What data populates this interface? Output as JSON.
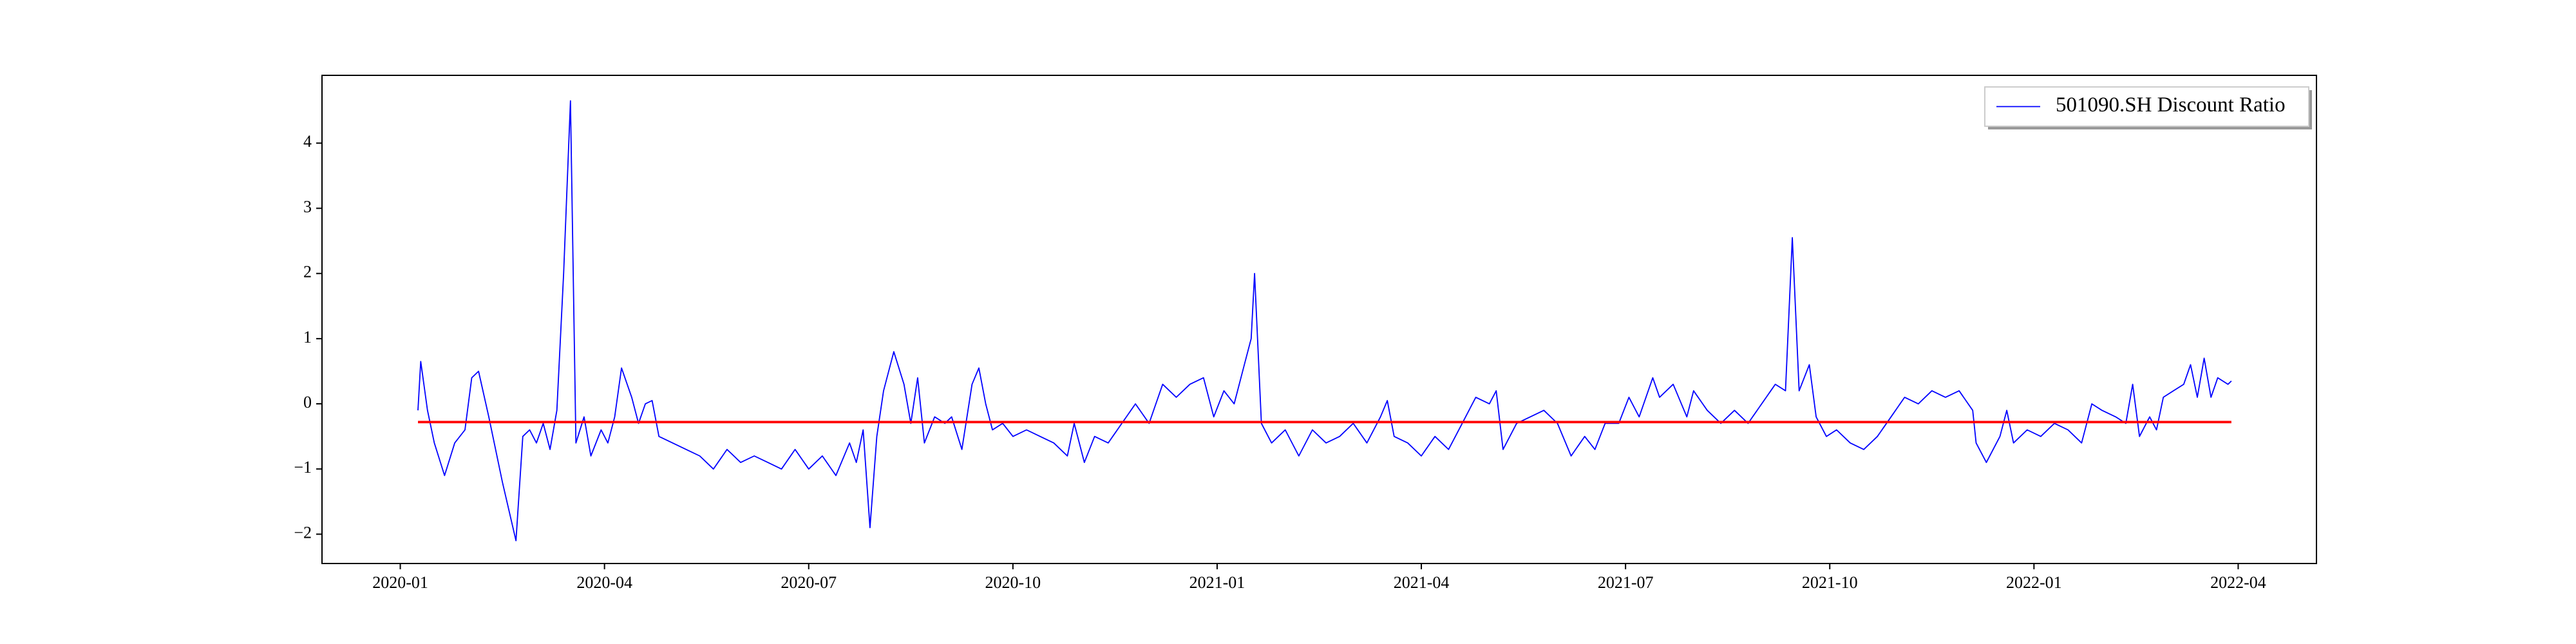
{
  "chart_data": {
    "type": "line",
    "x": [
      0.26,
      0.3,
      0.4,
      0.5,
      0.65,
      0.8,
      0.95,
      1.05,
      1.15,
      1.3,
      1.5,
      1.7,
      1.8,
      1.9,
      2.0,
      2.1,
      2.2,
      2.3,
      2.4,
      2.5,
      2.58,
      2.7,
      2.8,
      2.95,
      3.05,
      3.15,
      3.25,
      3.4,
      3.5,
      3.6,
      3.7,
      3.8,
      4.0,
      4.2,
      4.4,
      4.6,
      4.8,
      5.0,
      5.2,
      5.4,
      5.6,
      5.8,
      6.0,
      6.2,
      6.4,
      6.6,
      6.7,
      6.8,
      6.9,
      7.0,
      7.1,
      7.25,
      7.4,
      7.5,
      7.6,
      7.7,
      7.85,
      8.0,
      8.1,
      8.25,
      8.4,
      8.5,
      8.6,
      8.7,
      8.85,
      9.0,
      9.2,
      9.4,
      9.6,
      9.8,
      9.9,
      10.05,
      10.2,
      10.4,
      10.6,
      10.8,
      11.0,
      11.2,
      11.4,
      11.6,
      11.8,
      11.95,
      12.1,
      12.25,
      12.4,
      12.5,
      12.55,
      12.65,
      12.8,
      13.0,
      13.2,
      13.4,
      13.6,
      13.8,
      14.0,
      14.2,
      14.4,
      14.5,
      14.6,
      14.8,
      15.0,
      15.2,
      15.4,
      15.6,
      15.8,
      16.0,
      16.1,
      16.2,
      16.4,
      16.6,
      16.8,
      17.0,
      17.2,
      17.4,
      17.55,
      17.7,
      17.9,
      18.05,
      18.2,
      18.4,
      18.5,
      18.7,
      18.9,
      19.0,
      19.2,
      19.4,
      19.6,
      19.8,
      20.0,
      20.2,
      20.35,
      20.45,
      20.55,
      20.7,
      20.8,
      20.95,
      21.1,
      21.3,
      21.5,
      21.7,
      21.9,
      22.1,
      22.3,
      22.5,
      22.7,
      22.9,
      23.1,
      23.15,
      23.3,
      23.5,
      23.6,
      23.7,
      23.9,
      24.1,
      24.3,
      24.5,
      24.7,
      24.85,
      25.0,
      25.2,
      25.35,
      25.45,
      25.55,
      25.7,
      25.8,
      25.9,
      26.05,
      26.2,
      26.3,
      26.4,
      26.5,
      26.6,
      26.7,
      26.85,
      26.9
    ],
    "series": [
      {
        "name": "501090.SH Discount Ratio",
        "color": "#0000ff",
        "values": [
          -0.1,
          0.65,
          -0.1,
          -0.6,
          -1.1,
          -0.6,
          -0.4,
          0.4,
          0.5,
          -0.2,
          -1.2,
          -2.1,
          -0.5,
          -0.4,
          -0.6,
          -0.3,
          -0.7,
          -0.1,
          2.0,
          4.65,
          -0.6,
          -0.2,
          -0.8,
          -0.4,
          -0.6,
          -0.2,
          0.55,
          0.1,
          -0.3,
          0.0,
          0.05,
          -0.5,
          -0.6,
          -0.7,
          -0.8,
          -1.0,
          -0.7,
          -0.9,
          -0.8,
          -0.9,
          -1.0,
          -0.7,
          -1.0,
          -0.8,
          -1.1,
          -0.6,
          -0.9,
          -0.4,
          -1.9,
          -0.5,
          0.2,
          0.8,
          0.3,
          -0.3,
          0.4,
          -0.6,
          -0.2,
          -0.3,
          -0.2,
          -0.7,
          0.3,
          0.55,
          0.0,
          -0.4,
          -0.3,
          -0.5,
          -0.4,
          -0.5,
          -0.6,
          -0.8,
          -0.3,
          -0.9,
          -0.5,
          -0.6,
          -0.3,
          0.0,
          -0.3,
          0.3,
          0.1,
          0.3,
          0.4,
          -0.2,
          0.2,
          0.0,
          0.6,
          1.0,
          2.0,
          -0.3,
          -0.6,
          -0.4,
          -0.8,
          -0.4,
          -0.6,
          -0.5,
          -0.3,
          -0.6,
          -0.2,
          0.05,
          -0.5,
          -0.6,
          -0.8,
          -0.5,
          -0.7,
          -0.3,
          0.1,
          0.0,
          0.2,
          -0.7,
          -0.3,
          -0.2,
          -0.1,
          -0.3,
          -0.8,
          -0.5,
          -0.7,
          -0.3,
          -0.3,
          0.1,
          -0.2,
          0.4,
          0.1,
          0.3,
          -0.2,
          0.2,
          -0.1,
          -0.3,
          -0.1,
          -0.3,
          0.0,
          0.3,
          0.2,
          2.55,
          0.2,
          0.6,
          -0.2,
          -0.5,
          -0.4,
          -0.6,
          -0.7,
          -0.5,
          -0.2,
          0.1,
          0.0,
          0.2,
          0.1,
          0.2,
          -0.1,
          -0.6,
          -0.9,
          -0.5,
          -0.1,
          -0.6,
          -0.4,
          -0.5,
          -0.3,
          -0.4,
          -0.6,
          0.0,
          -0.1,
          -0.2,
          -0.3,
          0.3,
          -0.5,
          -0.2,
          -0.4,
          0.1,
          0.2,
          0.3,
          0.6,
          0.1,
          0.7,
          0.1,
          0.4,
          0.3,
          0.35
        ]
      }
    ],
    "hline": {
      "value": -0.28,
      "color": "#ff0000",
      "x": [
        0.26,
        26.9
      ]
    },
    "xlim": [
      -1.15,
      28.15
    ],
    "xticks": [
      {
        "value": 0,
        "label": "2020-01"
      },
      {
        "value": 3,
        "label": "2020-04"
      },
      {
        "value": 6,
        "label": "2020-07"
      },
      {
        "value": 9,
        "label": "2020-10"
      },
      {
        "value": 12,
        "label": "2021-01"
      },
      {
        "value": 15,
        "label": "2021-04"
      },
      {
        "value": 18,
        "label": "2021-07"
      },
      {
        "value": 21,
        "label": "2021-10"
      },
      {
        "value": 24,
        "label": "2022-01"
      },
      {
        "value": 27,
        "label": "2022-04"
      }
    ],
    "ylim": [
      -2.45,
      5.04
    ],
    "yticks": [
      {
        "value": -2,
        "label": "−2"
      },
      {
        "value": -1,
        "label": "−1"
      },
      0,
      1,
      2,
      3,
      4
    ],
    "legend": "upper right",
    "grid": false
  }
}
